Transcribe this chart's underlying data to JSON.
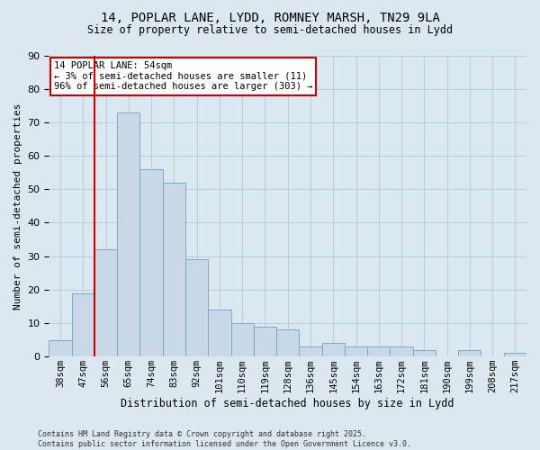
{
  "title_line1": "14, POPLAR LANE, LYDD, ROMNEY MARSH, TN29 9LA",
  "title_line2": "Size of property relative to semi-detached houses in Lydd",
  "xlabel": "Distribution of semi-detached houses by size in Lydd",
  "ylabel": "Number of semi-detached properties",
  "footer_line1": "Contains HM Land Registry data © Crown copyright and database right 2025.",
  "footer_line2": "Contains public sector information licensed under the Open Government Licence v3.0.",
  "categories": [
    "38sqm",
    "47sqm",
    "56sqm",
    "65sqm",
    "74sqm",
    "83sqm",
    "92sqm",
    "101sqm",
    "110sqm",
    "119sqm",
    "128sqm",
    "136sqm",
    "145sqm",
    "154sqm",
    "163sqm",
    "172sqm",
    "181sqm",
    "190sqm",
    "199sqm",
    "208sqm",
    "217sqm"
  ],
  "values": [
    5,
    19,
    32,
    73,
    56,
    52,
    29,
    14,
    10,
    9,
    8,
    3,
    4,
    3,
    3,
    3,
    2,
    0,
    2,
    0,
    1
  ],
  "bar_color": "#c8d8e8",
  "bar_edge_color": "#7aabcc",
  "red_line_x": 1.5,
  "annotation_title": "14 POPLAR LANE: 54sqm",
  "annotation_line1": "← 3% of semi-detached houses are smaller (11)",
  "annotation_line2": "96% of semi-detached houses are larger (303) →",
  "annotation_box_color": "#ffffff",
  "annotation_box_edge_color": "#cc0000",
  "red_line_color": "#cc0000",
  "grid_color": "#b8cfe0",
  "background_color": "#dce8f0",
  "ylim": [
    0,
    90
  ],
  "yticks": [
    0,
    10,
    20,
    30,
    40,
    50,
    60,
    70,
    80,
    90
  ]
}
